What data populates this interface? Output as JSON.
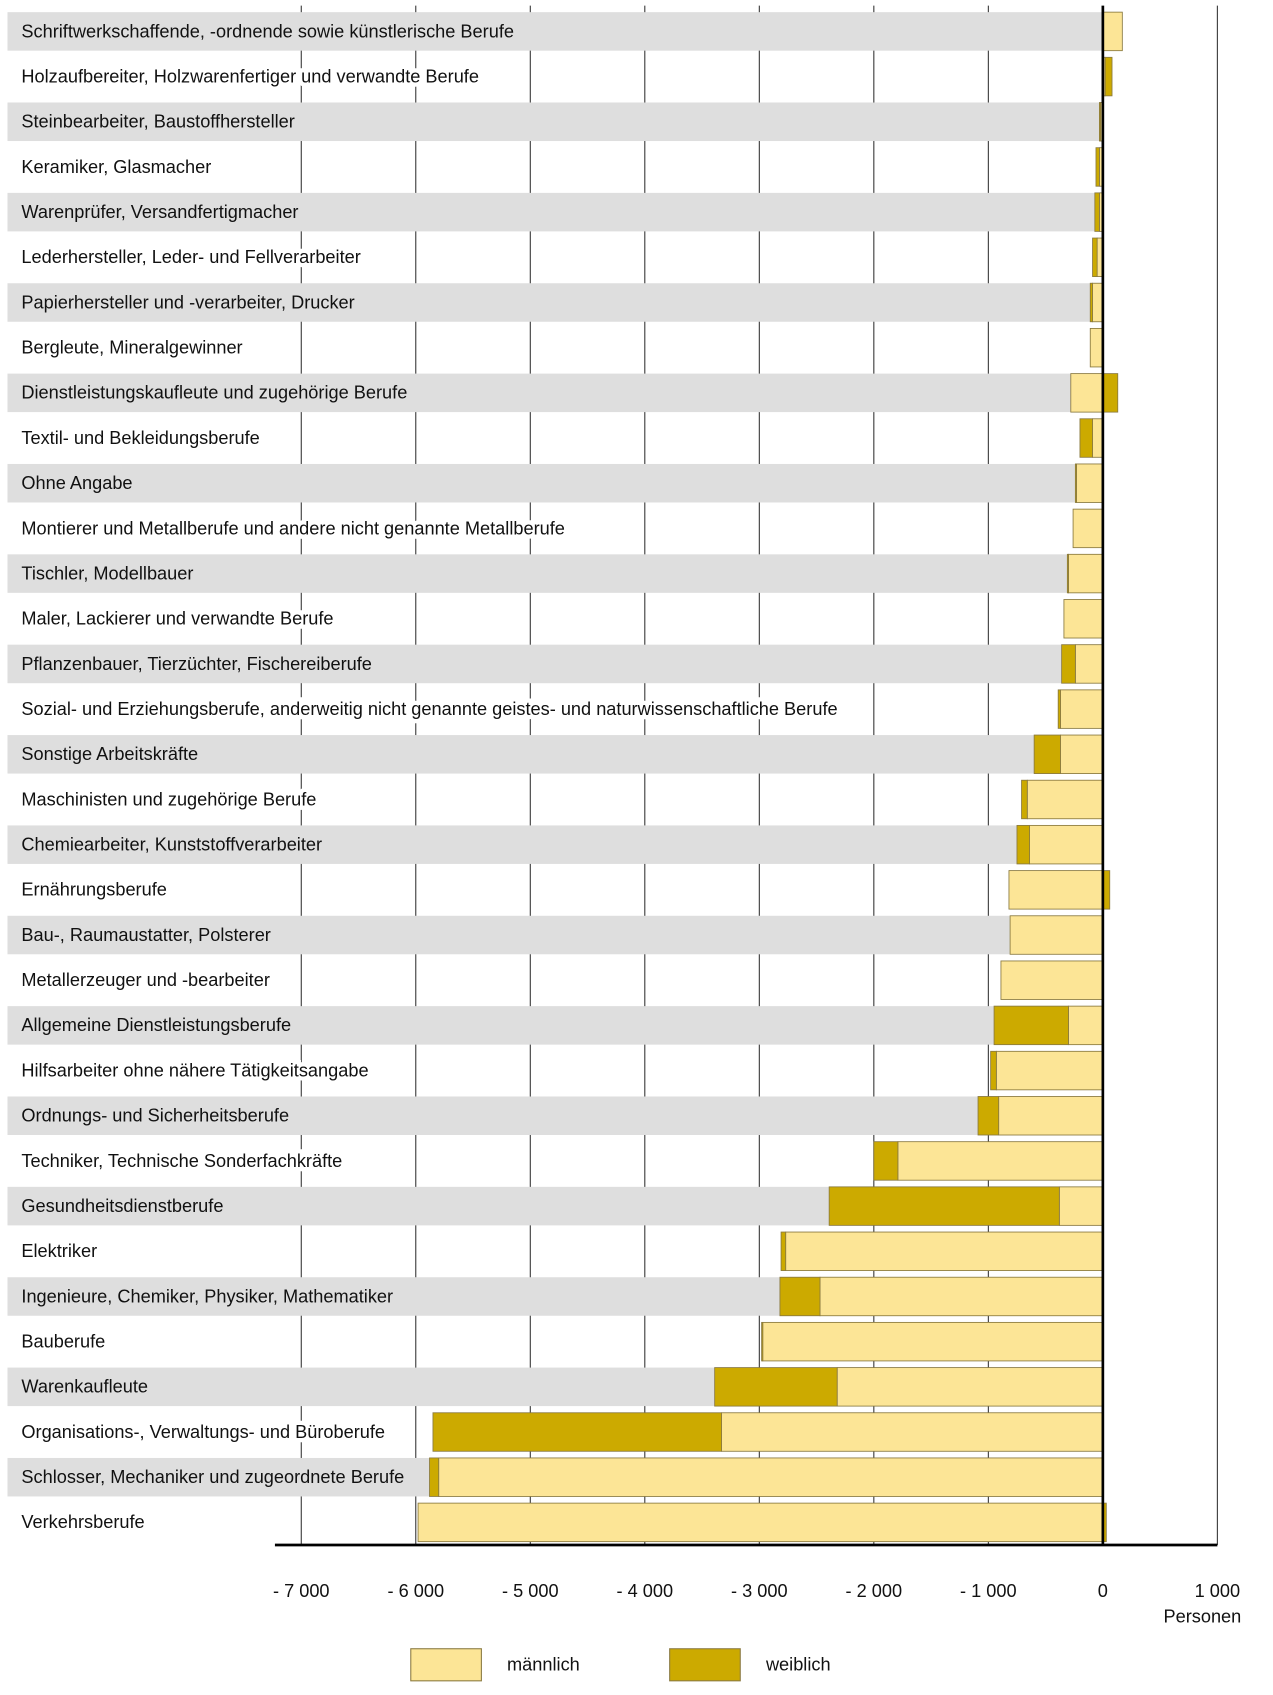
{
  "chart_data": {
    "type": "stacked-bar-horizontal",
    "categories": [
      "Schriftwerkschaffende, -ordnende sowie künstlerische Berufe",
      "Holzaufbereiter, Holzwarenfertiger und verwandte Berufe",
      "Steinbearbeiter, Baustoffhersteller",
      "Keramiker, Glasmacher",
      "Warenprüfer, Versandfertigmacher",
      "Lederhersteller, Leder- und Fellverarbeiter",
      "Papierhersteller und -verarbeiter, Drucker",
      "Bergleute, Mineralgewinner",
      "Dienstleistungskaufleute und zugehörige Berufe",
      "Textil- und Bekleidungsberufe",
      "Ohne Angabe",
      "Montierer und Metallberufe und andere nicht genannte Metallberufe",
      "Tischler, Modellbauer",
      "Maler, Lackierer und verwandte Berufe",
      "Pflanzenbauer, Tierzüchter, Fischereiberufe",
      "Sozial- und Erziehungsberufe, anderweitig nicht genannte geistes- und naturwissenschaftliche Berufe",
      "Sonstige Arbeitskräfte",
      "Maschinisten und zugehörige Berufe",
      "Chemiearbeiter, Kunststoffverarbeiter",
      "Ernährungsberufe",
      "Bau-, Raumaustatter, Polsterer",
      "Metallerzeuger und -bearbeiter",
      "Allgemeine Dienstleistungsberufe",
      "Hilfsarbeiter ohne nähere Tätigkeitsangabe",
      "Ordnungs- und Sicherheitsberufe",
      "Techniker, Technische Sonderfachkräfte",
      "Gesundheitsdienstberufe",
      "Elektriker",
      "Ingenieure, Chemiker, Physiker, Mathematiker",
      "Bauberufe",
      "Warenkaufleute",
      "Organisations-, Verwaltungs- und Büroberufe",
      "Schlosser, Mechaniker und zugeordnete Berufe",
      "Verkehrsberufe"
    ],
    "series": [
      {
        "name": "männlich",
        "color": "#fce596",
        "values": [
          170,
          20,
          -20,
          -30,
          -30,
          -50,
          -90,
          -110,
          -280,
          -90,
          -230,
          -260,
          -300,
          -340,
          -240,
          -370,
          -370,
          -660,
          -640,
          -820,
          -810,
          -890,
          -300,
          -930,
          -910,
          -1790,
          -380,
          -2770,
          -2470,
          -2970,
          -2320,
          -3330,
          -5800,
          -5980
        ]
      },
      {
        "name": "weiblich",
        "color": "#ccaa00",
        "values": [
          0,
          60,
          -10,
          -30,
          -40,
          -40,
          -20,
          0,
          130,
          -110,
          -10,
          0,
          -10,
          0,
          -120,
          -20,
          -230,
          -50,
          -110,
          60,
          0,
          0,
          -650,
          -50,
          -180,
          -210,
          -2010,
          -40,
          -350,
          -10,
          -1070,
          -2520,
          -80,
          30
        ]
      }
    ],
    "xlim": [
      -7230,
      1000
    ],
    "xticks": [
      {
        "value": -7000,
        "label": "- 7 000"
      },
      {
        "value": -6000,
        "label": "- 6 000"
      },
      {
        "value": -5000,
        "label": "- 5 000"
      },
      {
        "value": -4000,
        "label": "- 4 000"
      },
      {
        "value": -3000,
        "label": "- 3 000"
      },
      {
        "value": -2000,
        "label": "- 2 000"
      },
      {
        "value": -1000,
        "label": "- 1 000"
      },
      0,
      {
        "value": 1000,
        "label": "1 000"
      }
    ],
    "x_label": "Personen",
    "grid": true,
    "legend": "bottom"
  }
}
